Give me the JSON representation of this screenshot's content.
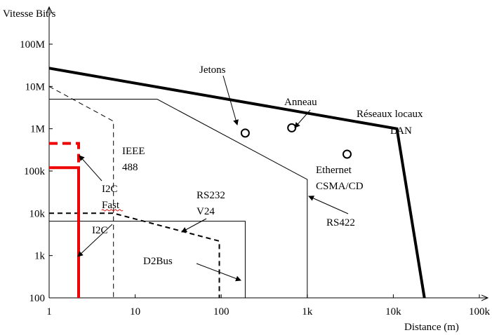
{
  "chart_data": {
    "type": "line",
    "xlabel": "Distance (m)",
    "ylabel": "Vitesse Bit/s",
    "xscale": "log",
    "yscale": "log",
    "xlim": [
      1,
      100000
    ],
    "ylim": [
      100,
      100000000
    ],
    "x_ticks": [
      {
        "value": 1,
        "label": "1"
      },
      {
        "value": 10,
        "label": "10"
      },
      {
        "value": 100,
        "label": "100"
      },
      {
        "value": 1000,
        "label": "1k"
      },
      {
        "value": 10000,
        "label": "10k"
      },
      {
        "value": 100000,
        "label": "100k"
      }
    ],
    "y_ticks": [
      {
        "value": 100,
        "label": "100"
      },
      {
        "value": 1000,
        "label": "1k"
      },
      {
        "value": 10000,
        "label": "10k"
      },
      {
        "value": 100000,
        "label": "100k"
      },
      {
        "value": 1000000,
        "label": "1M"
      },
      {
        "value": 10000000,
        "label": "10M"
      },
      {
        "value": 100000000,
        "label": "100M"
      }
    ],
    "grid": false,
    "series": [
      {
        "id": "lan",
        "color": "#000000",
        "style": "solid",
        "weight": "thick",
        "points": [
          [
            1,
            27000000
          ],
          [
            11000,
            1000000
          ],
          [
            23000,
            100
          ]
        ]
      },
      {
        "id": "rs422",
        "color": "#000000",
        "style": "solid",
        "weight": "thin",
        "points": [
          [
            1,
            5000000
          ],
          [
            18,
            5000000
          ],
          [
            1000,
            63000
          ],
          [
            1000,
            100
          ]
        ]
      },
      {
        "id": "ieee488",
        "color": "#000000",
        "style": "dashed",
        "weight": "thin",
        "points": [
          [
            1,
            10000000
          ],
          [
            5.6,
            1500000
          ],
          [
            5.6,
            100
          ]
        ]
      },
      {
        "id": "rs232",
        "color": "#000000",
        "style": "dashed",
        "weight": "medium",
        "points": [
          [
            1,
            10000
          ],
          [
            5.6,
            10000
          ],
          [
            95,
            2200
          ],
          [
            95,
            100
          ]
        ]
      },
      {
        "id": "d2bus",
        "color": "#000000",
        "style": "solid",
        "weight": "thin",
        "points": [
          [
            1,
            6500
          ],
          [
            190,
            6500
          ],
          [
            190,
            100
          ]
        ]
      },
      {
        "id": "i2c-fast",
        "color": "#ee0000",
        "style": "dashed",
        "weight": "thick",
        "points": [
          [
            1,
            450000
          ],
          [
            2.2,
            450000
          ],
          [
            2.2,
            100
          ]
        ]
      },
      {
        "id": "i2c",
        "color": "#ee0000",
        "style": "solid",
        "weight": "thick",
        "points": [
          [
            1,
            120000
          ],
          [
            2.2,
            120000
          ],
          [
            2.2,
            100
          ]
        ]
      }
    ],
    "markers": [
      {
        "x": 190,
        "y": 790000
      },
      {
        "x": 660,
        "y": 1050000
      },
      {
        "x": 2900,
        "y": 250000
      }
    ],
    "annotations": [
      {
        "text": "Jetons"
      },
      {
        "text": "Anneau"
      },
      {
        "text": "Réseaux locaux"
      },
      {
        "text": "LAN"
      },
      {
        "text": "IEEE"
      },
      {
        "text": "488"
      },
      {
        "text": "Ethernet"
      },
      {
        "text": "CSMA/CD"
      },
      {
        "text": "RS232"
      },
      {
        "text": "V24"
      },
      {
        "text": "RS422"
      },
      {
        "text": "I2C"
      },
      {
        "text": "Fast"
      },
      {
        "text": "I2C"
      },
      {
        "text": "D2Bus"
      }
    ]
  }
}
